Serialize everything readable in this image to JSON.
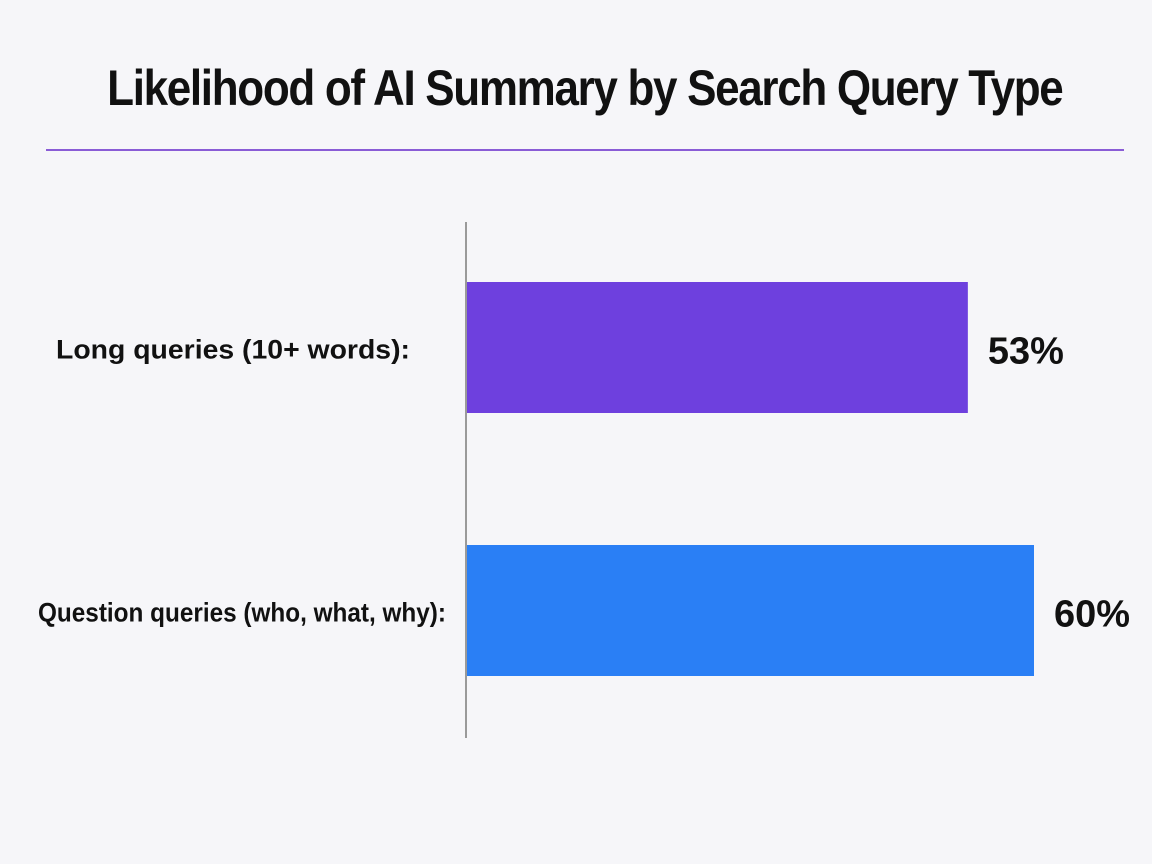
{
  "colors": {
    "background": "#f6f6f9",
    "rule": "#8a5cd6",
    "axis": "#9a9a9a",
    "text": "#111111"
  },
  "chart_data": {
    "type": "bar",
    "orientation": "horizontal",
    "title": "Likelihood of AI Summary by Search Query Type",
    "categories": [
      "Long queries (10+ words):",
      "Question queries (who, what, why):"
    ],
    "values": [
      53,
      60
    ],
    "value_labels": [
      "53%",
      "60%"
    ],
    "bar_colors": [
      "#6e40de",
      "#2a7ff5"
    ],
    "xlim": [
      0,
      60
    ],
    "grid": false,
    "legend": "none"
  }
}
